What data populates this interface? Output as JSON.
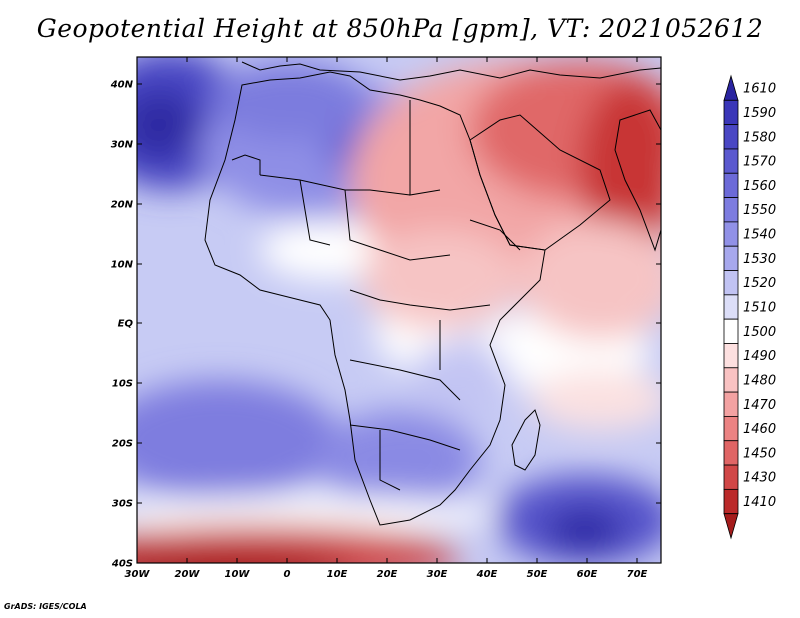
{
  "title": "Geopotential Height at 850hPa [gpm], VT: 2021052612",
  "credit": "GrADS: IGES/COLA",
  "colors": {
    "deep_red": "#b82227",
    "red": "#e06a6a",
    "light_red": "#f5bcbc",
    "white": "#ffffff",
    "light_blue": "#d6daf7",
    "blue": "#8a8be6",
    "deep_blue": "#3c37b4"
  },
  "lat_labels": [
    "40N",
    "30N",
    "20N",
    "10N",
    "EQ",
    "10S",
    "20S",
    "30S",
    "40S"
  ],
  "lon_labels": [
    "30W",
    "20W",
    "10W",
    "0",
    "10E",
    "20E",
    "30E",
    "40E",
    "50E",
    "60E",
    "70E"
  ],
  "colorbar": {
    "levels": [
      "1610",
      "1590",
      "1580",
      "1570",
      "1560",
      "1550",
      "1540",
      "1530",
      "1520",
      "1510",
      "1500",
      "1490",
      "1480",
      "1470",
      "1460",
      "1450",
      "1430",
      "1410"
    ],
    "colors": [
      "#2a24a0",
      "#3a36b8",
      "#4a47c4",
      "#5b59cf",
      "#6c6ad8",
      "#7d7ce0",
      "#9191e7",
      "#a7a8ed",
      "#c1c3f3",
      "#dcdef8",
      "#ffffff",
      "#fde0e0",
      "#f9c2c2",
      "#f3a2a2",
      "#ec8383",
      "#e06565",
      "#d14747",
      "#bb2a2a",
      "#a51c1c"
    ]
  }
}
